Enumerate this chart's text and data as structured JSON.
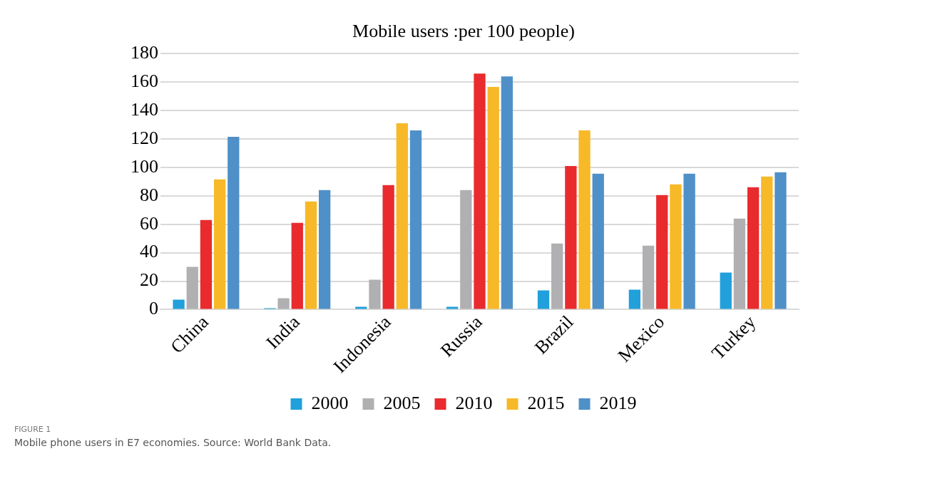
{
  "chart_data": {
    "type": "bar",
    "title": "Mobile users :per 100 people)",
    "categories": [
      "China",
      "India",
      "Indonesia",
      "Russia",
      "Brazil",
      "Mexico",
      "Turkey"
    ],
    "series": [
      {
        "name": "2000",
        "color": "#21a0db",
        "values": [
          7,
          1,
          2,
          2,
          13.5,
          14,
          26
        ]
      },
      {
        "name": "2005",
        "color": "#b0b0b2",
        "values": [
          30,
          8,
          21,
          84,
          46.5,
          45,
          64
        ]
      },
      {
        "name": "2010",
        "color": "#e92b2e",
        "values": [
          63,
          61,
          87.5,
          166,
          101,
          80.5,
          86
        ]
      },
      {
        "name": "2015",
        "color": "#f7b928",
        "values": [
          91.5,
          76,
          131,
          156.5,
          126,
          88,
          93.5
        ]
      },
      {
        "name": "2019",
        "color": "#4f90c8",
        "values": [
          121.5,
          84,
          126,
          164,
          95.5,
          95.5,
          96.5
        ]
      }
    ],
    "ylim": [
      0,
      180
    ],
    "yticks": [
      0,
      20,
      40,
      60,
      80,
      100,
      120,
      140,
      160,
      180
    ],
    "grid": "y",
    "legend": "bottom",
    "annotations": [
      "FIGURE 1",
      "Mobile phone users in E7 economies. Source: World Bank Data."
    ]
  }
}
